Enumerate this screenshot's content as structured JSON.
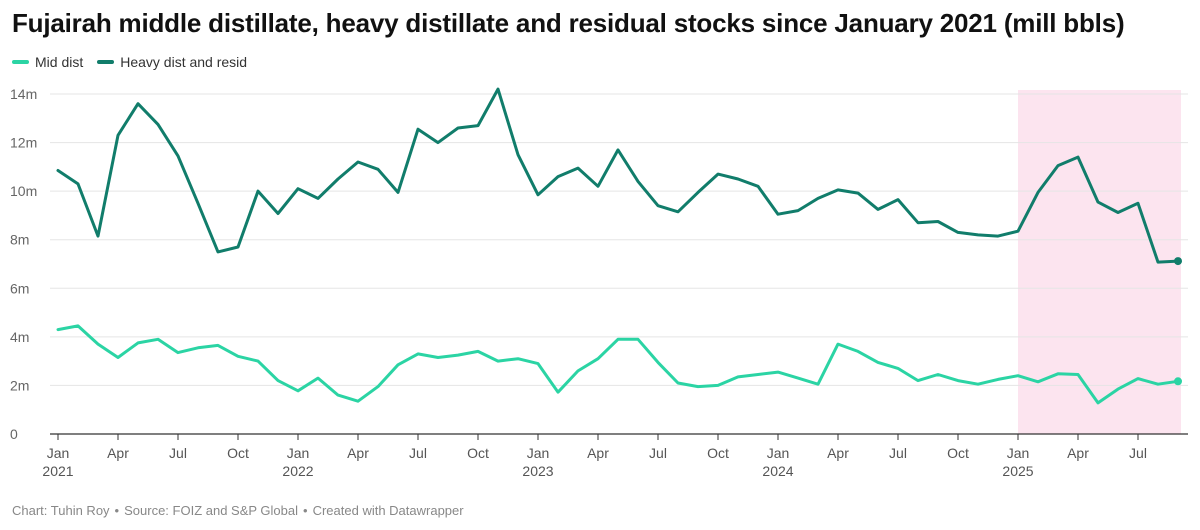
{
  "title": "Fujairah middle distillate, heavy distillate and residual stocks since January 2021 (mill bbls)",
  "footer": {
    "chart_credit": "Chart: Tuhin Roy",
    "source": "Source: FOIZ and S&P Global",
    "tool": "Created with Datawrapper"
  },
  "colors": {
    "mid_dist": "#2bd4a4",
    "heavy_dist": "#117d6b",
    "highlight": "#fce4ef",
    "grid": "#e5e5e5",
    "axis": "#333333"
  },
  "chart_data": {
    "type": "line",
    "x_unit": "month",
    "x": [
      "2021-01",
      "2021-02",
      "2021-03",
      "2021-04",
      "2021-05",
      "2021-06",
      "2021-07",
      "2021-08",
      "2021-09",
      "2021-10",
      "2021-11",
      "2021-12",
      "2022-01",
      "2022-02",
      "2022-03",
      "2022-04",
      "2022-05",
      "2022-06",
      "2022-07",
      "2022-08",
      "2022-09",
      "2022-10",
      "2022-11",
      "2022-12",
      "2023-01",
      "2023-02",
      "2023-03",
      "2023-04",
      "2023-05",
      "2023-06",
      "2023-07",
      "2023-08",
      "2023-09",
      "2023-10",
      "2023-11",
      "2023-12",
      "2024-01",
      "2024-02",
      "2024-03",
      "2024-04",
      "2024-05",
      "2024-06",
      "2024-07",
      "2024-08",
      "2024-09",
      "2024-10",
      "2024-11",
      "2024-12",
      "2025-01",
      "2025-02",
      "2025-03",
      "2025-04",
      "2025-05",
      "2025-06",
      "2025-07",
      "2025-08",
      "2025-09"
    ],
    "series": [
      {
        "name": "Mid dist",
        "color": "#2bd4a4",
        "values": [
          4.3,
          4.45,
          3.7,
          3.15,
          3.75,
          3.9,
          3.35,
          3.55,
          3.65,
          3.2,
          3.0,
          2.2,
          1.78,
          2.3,
          1.6,
          1.35,
          1.95,
          2.85,
          3.3,
          3.15,
          3.25,
          3.4,
          3.0,
          3.1,
          2.9,
          1.72,
          2.6,
          3.1,
          3.9,
          3.9,
          2.95,
          2.1,
          1.95,
          2.0,
          2.35,
          2.45,
          2.55,
          2.3,
          2.05,
          3.7,
          3.4,
          2.95,
          2.7,
          2.2,
          2.45,
          2.2,
          2.05,
          2.25,
          2.4,
          2.15,
          2.48,
          2.45,
          1.28,
          1.85,
          2.28,
          2.05,
          2.17
        ]
      },
      {
        "name": "Heavy dist and resid",
        "color": "#117d6b",
        "values": [
          10.85,
          10.3,
          8.15,
          12.3,
          13.6,
          12.75,
          11.45,
          9.5,
          7.5,
          7.7,
          10.0,
          9.08,
          10.1,
          9.7,
          10.5,
          11.2,
          10.9,
          9.95,
          12.55,
          12.0,
          12.6,
          12.7,
          14.2,
          11.5,
          9.85,
          10.6,
          10.95,
          10.2,
          11.7,
          10.4,
          9.4,
          9.15,
          9.95,
          10.7,
          10.5,
          10.2,
          9.05,
          9.2,
          9.7,
          10.05,
          9.92,
          9.25,
          9.65,
          8.7,
          8.75,
          8.3,
          8.2,
          8.15,
          8.35,
          9.95,
          11.05,
          11.4,
          9.55,
          9.12,
          9.5,
          7.08,
          7.12
        ]
      }
    ],
    "yticks": [
      0,
      2,
      4,
      6,
      8,
      10,
      12,
      14
    ],
    "ytick_labels": [
      "0",
      "2m",
      "4m",
      "6m",
      "8m",
      "10m",
      "12m",
      "14m"
    ],
    "ylim": [
      0,
      14
    ],
    "xticks": [
      {
        "x": "2021-01",
        "label": "Jan",
        "year": "2021"
      },
      {
        "x": "2021-04",
        "label": "Apr"
      },
      {
        "x": "2021-07",
        "label": "Jul"
      },
      {
        "x": "2021-10",
        "label": "Oct"
      },
      {
        "x": "2022-01",
        "label": "Jan",
        "year": "2022"
      },
      {
        "x": "2022-04",
        "label": "Apr"
      },
      {
        "x": "2022-07",
        "label": "Jul"
      },
      {
        "x": "2022-10",
        "label": "Oct"
      },
      {
        "x": "2023-01",
        "label": "Jan",
        "year": "2023"
      },
      {
        "x": "2023-04",
        "label": "Apr"
      },
      {
        "x": "2023-07",
        "label": "Jul"
      },
      {
        "x": "2023-10",
        "label": "Oct"
      },
      {
        "x": "2024-01",
        "label": "Jan",
        "year": "2024"
      },
      {
        "x": "2024-04",
        "label": "Apr"
      },
      {
        "x": "2024-07",
        "label": "Jul"
      },
      {
        "x": "2024-10",
        "label": "Oct"
      },
      {
        "x": "2025-01",
        "label": "Jan",
        "year": "2025"
      },
      {
        "x": "2025-04",
        "label": "Apr"
      },
      {
        "x": "2025-07",
        "label": "Jul"
      }
    ],
    "highlight_range": [
      "2025-01",
      "2025-10"
    ],
    "grid": true,
    "legend_position": "top-left",
    "end_markers": true
  }
}
